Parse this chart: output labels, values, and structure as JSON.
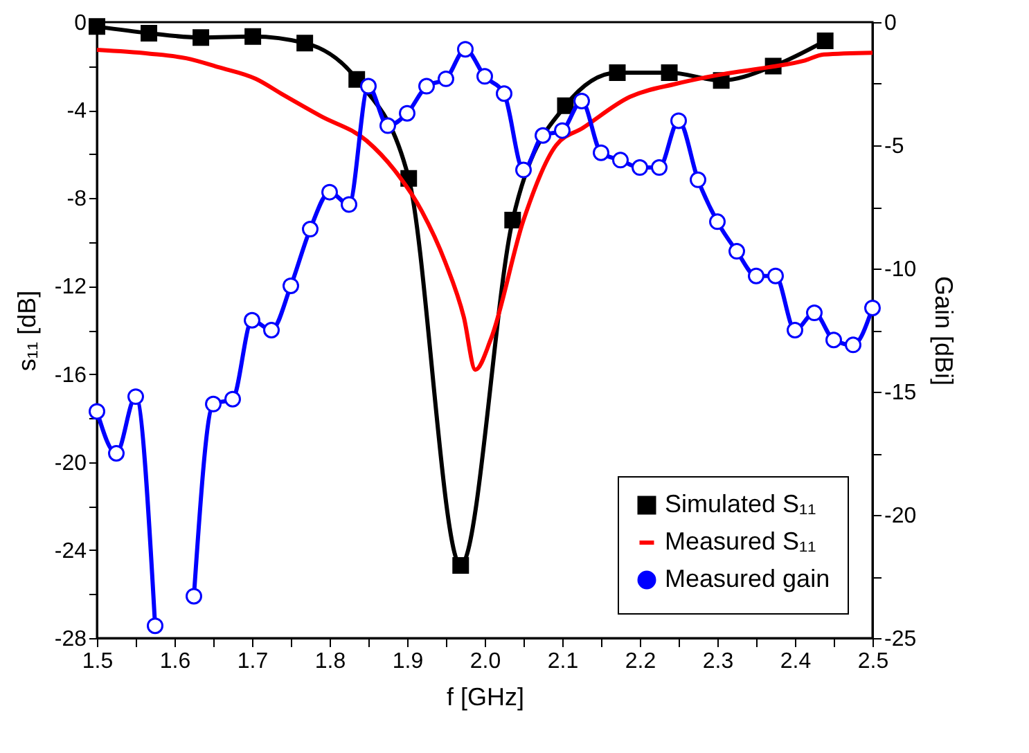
{
  "chart_data": {
    "type": "line",
    "xlabel": "f [GHz]",
    "ylabel": "s₁₁ [dB]",
    "y2label": "Gain [dBi]",
    "xlim": [
      1.5,
      2.5
    ],
    "xticks": [
      1.5,
      {
        "value": 1.55,
        "label": null
      },
      1.6,
      {
        "value": 1.65,
        "label": null
      },
      1.7,
      {
        "value": 1.75,
        "label": null
      },
      1.8,
      {
        "value": 1.85,
        "label": null
      },
      1.9,
      {
        "value": 1.95,
        "label": null
      },
      {
        "value": 2.0,
        "label": "2.0"
      },
      {
        "value": 2.05,
        "label": null
      },
      2.1,
      {
        "value": 2.15,
        "label": null
      },
      2.2,
      {
        "value": 2.25,
        "label": null
      },
      2.3,
      {
        "value": 2.35,
        "label": null
      },
      2.4,
      {
        "value": 2.45,
        "label": null
      },
      2.5
    ],
    "ylim": [
      -28,
      0
    ],
    "yticks": [
      -28,
      {
        "value": -26,
        "label": null
      },
      -24,
      {
        "value": -22,
        "label": null
      },
      -20,
      {
        "value": -18,
        "label": null
      },
      -16,
      {
        "value": -14,
        "label": null
      },
      -12,
      {
        "value": -10,
        "label": null
      },
      -8,
      {
        "value": -6,
        "label": null
      },
      -4,
      {
        "value": -2,
        "label": null
      },
      0
    ],
    "y2lim": [
      -25,
      0
    ],
    "y2ticks": [
      -25,
      {
        "value": -22.5,
        "label": null
      },
      -20,
      {
        "value": -17.5,
        "label": null
      },
      -15,
      {
        "value": -12.5,
        "label": null
      },
      -10,
      {
        "value": -7.5,
        "label": null
      },
      -5,
      {
        "value": -2.5,
        "label": null
      },
      0
    ],
    "legend": "bottom right",
    "grid": false,
    "line_style": "solid",
    "series": [
      {
        "name": "Simulated S₁₁",
        "color": "#000000",
        "marker": "square",
        "x": [
          1.5,
          1.567,
          1.634,
          1.701,
          1.768,
          1.835,
          1.902,
          1.969,
          2.036,
          2.104,
          2.171,
          2.238,
          2.305,
          2.372,
          2.439
        ],
        "values": [
          -0.2,
          -0.5,
          -0.7,
          -0.65,
          -0.95,
          -2.6,
          -7.1,
          -24.7,
          -9.0,
          -3.8,
          -2.3,
          -2.3,
          -2.65,
          -2.0,
          -0.85
        ]
      },
      {
        "name": "Measured S₁₁",
        "color": "#ff0000",
        "marker": "none",
        "x": [
          1.5,
          1.567,
          1.615,
          1.657,
          1.705,
          1.74,
          1.788,
          1.848,
          1.883,
          1.919,
          1.949,
          1.973,
          1.988,
          2.008,
          2.05,
          2.092,
          2.127,
          2.187,
          2.247,
          2.306,
          2.366,
          2.413,
          2.437,
          2.5
        ],
        "values": [
          -1.26,
          -1.43,
          -1.64,
          -2.05,
          -2.58,
          -3.3,
          -4.26,
          -5.4,
          -6.7,
          -8.6,
          -10.9,
          -13.4,
          -15.8,
          -14.4,
          -9.0,
          -5.6,
          -4.8,
          -3.4,
          -2.8,
          -2.37,
          -2.05,
          -1.74,
          -1.47,
          -1.39
        ]
      },
      {
        "name": "Measured gain",
        "color": "#0000ff",
        "marker": "circle",
        "axis": "y2",
        "x": [
          1.5,
          1.525,
          1.55,
          1.575,
          1.6,
          1.625,
          1.65,
          1.675,
          1.7,
          1.725,
          1.75,
          1.775,
          1.8,
          1.825,
          1.85,
          1.875,
          1.9,
          1.925,
          1.95,
          1.975,
          2.0,
          2.025,
          2.05,
          2.075,
          2.1,
          2.125,
          2.15,
          2.175,
          2.2,
          2.225,
          2.25,
          2.275,
          2.3,
          2.325,
          2.35,
          2.375,
          2.4,
          2.425,
          2.45,
          2.475,
          2.5
        ],
        "values": [
          -15.8,
          -17.5,
          -15.2,
          -24.5,
          null,
          -23.3,
          -15.5,
          -15.3,
          -12.1,
          -12.5,
          -10.7,
          -8.4,
          -6.9,
          -7.4,
          -2.6,
          -4.2,
          -3.7,
          -2.6,
          -2.3,
          -1.1,
          -2.2,
          -2.9,
          -6.0,
          -4.6,
          -4.4,
          -3.2,
          -5.3,
          -5.6,
          -5.9,
          -5.9,
          -4.0,
          -6.4,
          -8.1,
          -9.3,
          -10.3,
          -10.3,
          -12.5,
          -11.8,
          -12.9,
          -13.1,
          -11.6
        ]
      }
    ]
  }
}
